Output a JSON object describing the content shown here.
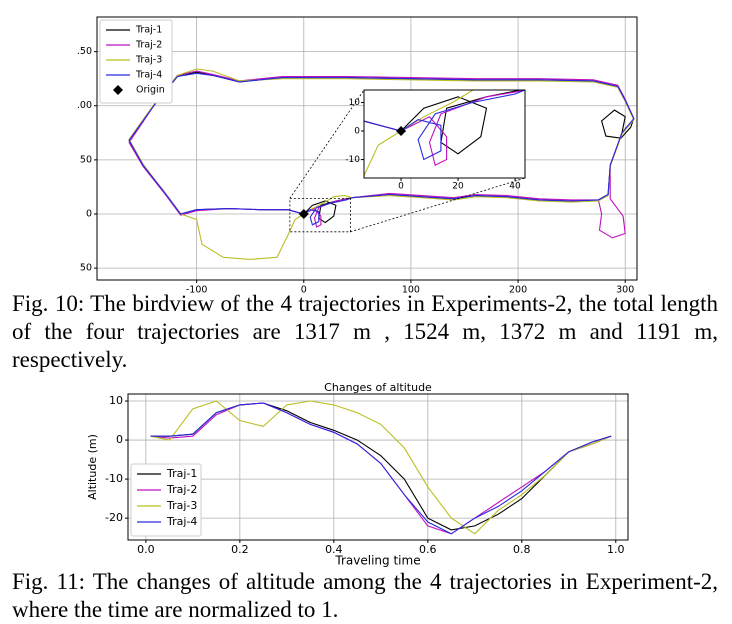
{
  "chart_data": [
    {
      "type": "line",
      "xlim": [
        -193,
        311
      ],
      "ylim": [
        -61,
        182
      ],
      "xticks": [
        -100,
        0,
        100,
        200,
        300
      ],
      "yticks": [
        {
          "value": 150,
          "label": ".50"
        },
        {
          "value": 100,
          "label": ".00"
        },
        {
          "value": 50,
          "label": "50"
        },
        0,
        {
          "value": -50,
          "label": "50"
        }
      ],
      "grid": true,
      "legend": "upper left",
      "origin": {
        "name": "Origin",
        "x": 0,
        "y": 0,
        "color": "#000000"
      },
      "inset": {
        "xlim": [
          -13,
          43.5
        ],
        "ylim": [
          -16.5,
          14.4
        ],
        "xticks": [
          0,
          20,
          40
        ],
        "yticks": [
          10,
          0,
          -10
        ]
      },
      "series": [
        {
          "name": "Traj-1",
          "color": "#000000",
          "x": [
            0,
            8,
            20,
            30,
            28,
            20,
            14,
            16,
            30,
            40,
            45,
            80,
            110,
            140,
            160,
            190,
            220,
            250,
            275,
            284,
            286,
            297,
            300,
            290,
            278,
            282,
            296,
            305,
            308,
            300,
            293,
            270,
            220,
            160,
            100,
            40,
            -20,
            -60,
            -85,
            -100,
            -118,
            -140,
            -163,
            -150,
            -130,
            -115,
            -100,
            -70,
            -40,
            -15,
            0
          ],
          "y": [
            0,
            8,
            12,
            8,
            -2,
            -8,
            -4,
            8,
            12,
            14,
            15,
            18,
            16,
            14,
            17,
            16,
            13,
            12,
            13,
            18,
            45,
            75,
            90,
            96,
            86,
            72,
            70,
            80,
            88,
            105,
            118,
            123,
            124,
            124,
            125,
            126,
            126,
            122,
            128,
            131,
            127,
            100,
            68,
            45,
            20,
            0,
            4,
            5,
            4,
            4,
            0
          ]
        },
        {
          "name": "Traj-2",
          "color": "#c010c0",
          "x": [
            0,
            10,
            16,
            16,
            12,
            10,
            14,
            30,
            42,
            45,
            80,
            110,
            140,
            160,
            190,
            220,
            250,
            275,
            278,
            276,
            288,
            300,
            298,
            286,
            286,
            297,
            308,
            300,
            293,
            270,
            220,
            160,
            100,
            40,
            -20,
            -60,
            -85,
            -100,
            -118,
            -140,
            -163,
            -150,
            -130,
            -115,
            -100,
            -70,
            -40,
            -15,
            0
          ],
          "y": [
            0,
            5,
            -2,
            -10,
            -12,
            -4,
            6,
            12,
            14,
            15,
            19,
            17,
            15,
            18,
            17,
            14,
            13,
            13,
            0,
            -15,
            -22,
            -18,
            -2,
            14,
            45,
            75,
            88,
            106,
            119,
            124,
            125,
            125,
            126,
            127,
            127,
            123,
            129,
            132,
            128,
            100,
            66,
            44,
            19,
            -1,
            3,
            5,
            4,
            4,
            0
          ]
        },
        {
          "name": "Traj-3",
          "color": "#bcbd22",
          "x": [
            0,
            8,
            18,
            28,
            38,
            45,
            80,
            110,
            140,
            160,
            190,
            220,
            250,
            275,
            284,
            286,
            297,
            308,
            300,
            293,
            270,
            220,
            160,
            100,
            40,
            -20,
            -60,
            -85,
            -100,
            -118,
            -140,
            -163,
            -150,
            -130,
            -115,
            -100,
            -95,
            -75,
            -50,
            -25,
            -15,
            -8,
            0
          ],
          "y": [
            0,
            5,
            10,
            16,
            17,
            15,
            17,
            15,
            13,
            16,
            15,
            12,
            11,
            12,
            17,
            44,
            74,
            87,
            104,
            117,
            122,
            123,
            123,
            124,
            125,
            125,
            123,
            132,
            134,
            128,
            101,
            69,
            46,
            20,
            0,
            -5,
            -28,
            -40,
            -42,
            -40,
            -20,
            -5,
            0
          ]
        },
        {
          "name": "Traj-4",
          "color": "#2a2ae0",
          "x": [
            0,
            6,
            14,
            14,
            8,
            6,
            12,
            25,
            40,
            45,
            80,
            110,
            140,
            160,
            190,
            220,
            250,
            275,
            284,
            286,
            297,
            308,
            300,
            293,
            270,
            220,
            160,
            100,
            40,
            -20,
            -60,
            -85,
            -100,
            -118,
            -140,
            -163,
            -150,
            -130,
            -115,
            -100,
            -70,
            -40,
            -15,
            0
          ],
          "y": [
            0,
            4,
            2,
            -7,
            -10,
            -3,
            6,
            10,
            13,
            15,
            18,
            16,
            14,
            17,
            16,
            13,
            12,
            13,
            18,
            45,
            75,
            88,
            105,
            118,
            123,
            124,
            124,
            125,
            126,
            126,
            122,
            128,
            130,
            127,
            100,
            68,
            45,
            20,
            0,
            4,
            5,
            4,
            4,
            0
          ]
        }
      ]
    },
    {
      "type": "line",
      "title": "Changes of altitude",
      "x_label": "Traveling time",
      "y_label": "Altitude (m)",
      "xlim": [
        -0.038,
        1.026
      ],
      "ylim": [
        -25.6,
        11.8
      ],
      "xticks": [
        {
          "value": 0,
          "label": "0.0"
        },
        0.2,
        0.4,
        0.6,
        0.8,
        {
          "value": 1,
          "label": "1.0"
        }
      ],
      "yticks": [
        10,
        0,
        -10,
        -20
      ],
      "grid": true,
      "legend": "lower left",
      "x": [
        0.01,
        0.05,
        0.1,
        0.15,
        0.2,
        0.25,
        0.3,
        0.35,
        0.4,
        0.45,
        0.5,
        0.55,
        0.6,
        0.65,
        0.7,
        0.75,
        0.8,
        0.85,
        0.9,
        0.95,
        0.99
      ],
      "series": [
        {
          "name": "Traj-1",
          "color": "#000000",
          "values": [
            1,
            1,
            1.5,
            7,
            9,
            9.5,
            7.5,
            4.5,
            2.5,
            0,
            -4,
            -10,
            -20,
            -23,
            -22,
            -19,
            -15,
            -9,
            -3,
            -0.5,
            1
          ]
        },
        {
          "name": "Traj-2",
          "color": "#c010c0",
          "values": [
            1,
            0.5,
            1,
            6.5,
            9,
            9.5,
            7,
            4,
            2,
            -1,
            -6,
            -14,
            -22,
            -24,
            -20,
            -16,
            -12,
            -8,
            -3,
            -1,
            1
          ]
        },
        {
          "name": "Traj-3",
          "color": "#bcbd22",
          "values": [
            1,
            0,
            8,
            10,
            5,
            3.5,
            9,
            10,
            9,
            7,
            4,
            -2,
            -12,
            -20,
            -24,
            -18,
            -14,
            -9,
            -3,
            -1,
            1
          ]
        },
        {
          "name": "Traj-4",
          "color": "#2a2ae0",
          "values": [
            1,
            1,
            1.5,
            7,
            9,
            9.5,
            7,
            4,
            2,
            -1,
            -6,
            -14,
            -21,
            -24,
            -20,
            -17,
            -13,
            -8,
            -3,
            -0.5,
            1
          ]
        }
      ]
    }
  ],
  "captions": [
    "Fig. 10: The birdview of the 4 trajectories in Experiments-2, the total length of the four trajectories are 1317 m , 1524 m, 1372 m and 1191 m, respectively.",
    "Fig. 11: The changes of altitude among the 4 trajectories in Experiment-2, where the time are normalized to 1."
  ]
}
